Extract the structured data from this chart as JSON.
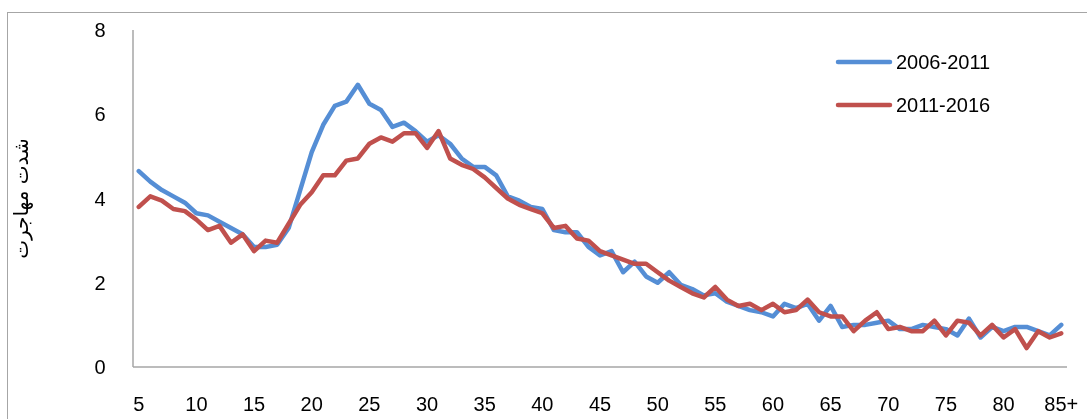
{
  "chart_data": {
    "type": "line",
    "ylabel": "شدت مهاجرت",
    "categories": [
      "5",
      null,
      null,
      null,
      null,
      "10",
      null,
      null,
      null,
      null,
      "15",
      null,
      null,
      null,
      null,
      "20",
      null,
      null,
      null,
      null,
      "25",
      null,
      null,
      null,
      null,
      "30",
      null,
      null,
      null,
      null,
      "35",
      null,
      null,
      null,
      null,
      "40",
      null,
      null,
      null,
      null,
      "45",
      null,
      null,
      null,
      null,
      "50",
      null,
      null,
      null,
      null,
      "55",
      null,
      null,
      null,
      null,
      "60",
      null,
      null,
      null,
      null,
      "65",
      null,
      null,
      null,
      null,
      "70",
      null,
      null,
      null,
      null,
      "75",
      null,
      null,
      null,
      null,
      "80",
      null,
      null,
      null,
      null,
      "85+"
    ],
    "ylim": [
      0,
      8
    ],
    "yticks": [
      0,
      2,
      4,
      6,
      8
    ],
    "grid": false,
    "legend": "top right",
    "series": [
      {
        "name": "2006-2011",
        "color": "#558ed5",
        "values": [
          4.65,
          4.4,
          4.2,
          4.05,
          3.9,
          3.65,
          3.6,
          3.45,
          3.3,
          3.15,
          2.85,
          2.85,
          2.9,
          3.3,
          4.2,
          5.1,
          5.75,
          6.2,
          6.3,
          6.7,
          6.25,
          6.1,
          5.7,
          5.8,
          5.6,
          5.35,
          5.5,
          5.3,
          4.95,
          4.75,
          4.75,
          4.55,
          4.05,
          3.95,
          3.8,
          3.75,
          3.25,
          3.2,
          3.2,
          2.85,
          2.65,
          2.75,
          2.25,
          2.5,
          2.15,
          2.0,
          2.25,
          1.95,
          1.85,
          1.7,
          1.75,
          1.55,
          1.45,
          1.35,
          1.3,
          1.2,
          1.5,
          1.4,
          1.5,
          1.1,
          1.45,
          0.95,
          1.0,
          1.0,
          1.05,
          1.1,
          0.9,
          0.9,
          1.0,
          0.95,
          0.9,
          0.75,
          1.15,
          0.7,
          0.95,
          0.85,
          0.95,
          0.95,
          0.85,
          0.75,
          1.0
        ]
      },
      {
        "name": "2011-2016",
        "color": "#c0504d",
        "values": [
          3.8,
          4.05,
          3.95,
          3.75,
          3.7,
          3.5,
          3.25,
          3.35,
          2.95,
          3.15,
          2.75,
          3.0,
          2.95,
          3.4,
          3.85,
          4.15,
          4.55,
          4.55,
          4.9,
          4.95,
          5.3,
          5.45,
          5.35,
          5.55,
          5.55,
          5.2,
          5.6,
          4.95,
          4.8,
          4.7,
          4.5,
          4.25,
          4.0,
          3.85,
          3.75,
          3.65,
          3.3,
          3.35,
          3.05,
          3.0,
          2.75,
          2.65,
          2.55,
          2.45,
          2.45,
          2.25,
          2.05,
          1.9,
          1.75,
          1.65,
          1.9,
          1.6,
          1.45,
          1.5,
          1.35,
          1.5,
          1.3,
          1.35,
          1.6,
          1.3,
          1.2,
          1.2,
          0.85,
          1.1,
          1.3,
          0.9,
          0.95,
          0.85,
          0.85,
          1.1,
          0.75,
          1.1,
          1.05,
          0.75,
          1.0,
          0.7,
          0.9,
          0.45,
          0.85,
          0.7,
          0.8
        ]
      }
    ]
  }
}
